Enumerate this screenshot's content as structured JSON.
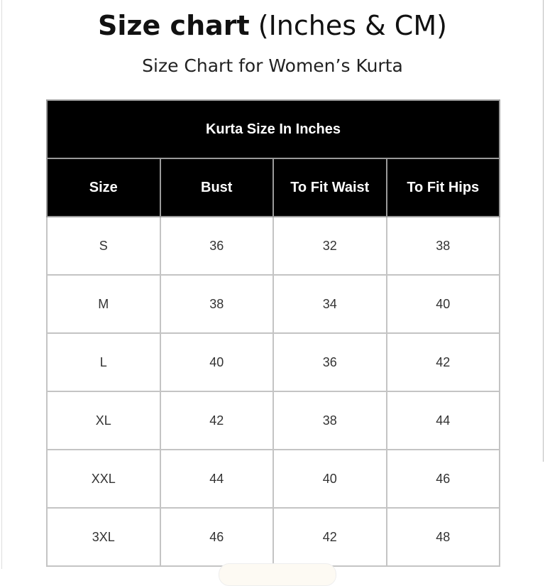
{
  "title": {
    "bold": "Size chart",
    "rest": " (Inches & CM)"
  },
  "subtitle": "Size Chart for Women’s Kurta",
  "table": {
    "caption": "Kurta Size In Inches",
    "headers": [
      "Size",
      "Bust",
      "To Fit Waist",
      "To Fit Hips"
    ],
    "rows": [
      [
        "S",
        "36",
        "32",
        "38"
      ],
      [
        "M",
        "38",
        "34",
        "40"
      ],
      [
        "L",
        "40",
        "36",
        "42"
      ],
      [
        "XL",
        "42",
        "38",
        "44"
      ],
      [
        "XXL",
        "44",
        "40",
        "46"
      ],
      [
        "3XL",
        "46",
        "42",
        "48"
      ]
    ]
  }
}
